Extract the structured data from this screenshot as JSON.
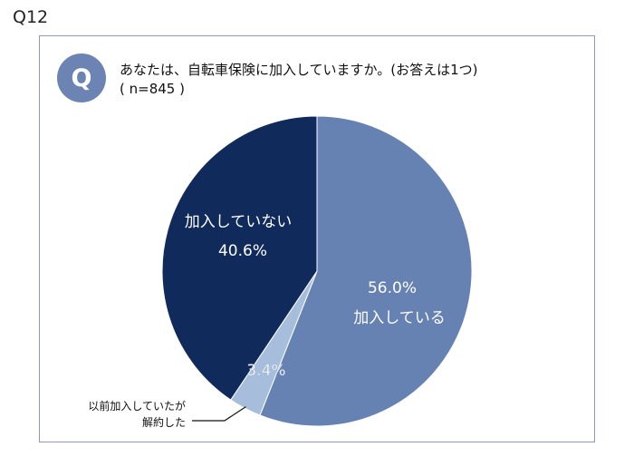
{
  "question_number": "Q12",
  "badge": "Q",
  "question": "あなたは、自転車保険に加入していますか。(お答えは1つ)",
  "sample": "( n=845 )",
  "colors": {
    "joined": "#6582b2",
    "previous": "#a6bedc",
    "not_joined": "#102a5b",
    "frame": "#8c9bb5",
    "badge": "#6b84b3"
  },
  "chart_data": {
    "type": "pie",
    "start": "12 o'clock",
    "direction": "clockwise",
    "slices": [
      {
        "label": "加入している",
        "value": 56.0,
        "value_label": "56.0%",
        "color": "#6582b2"
      },
      {
        "label": "以前加入していたが\n解約した",
        "label_lines": [
          "以前加入していたが",
          "解約した"
        ],
        "value": 3.4,
        "value_label": "3.4%",
        "color": "#a6bedc"
      },
      {
        "label": "加入していない",
        "value": 40.6,
        "value_label": "40.6%",
        "color": "#102a5b"
      }
    ]
  }
}
